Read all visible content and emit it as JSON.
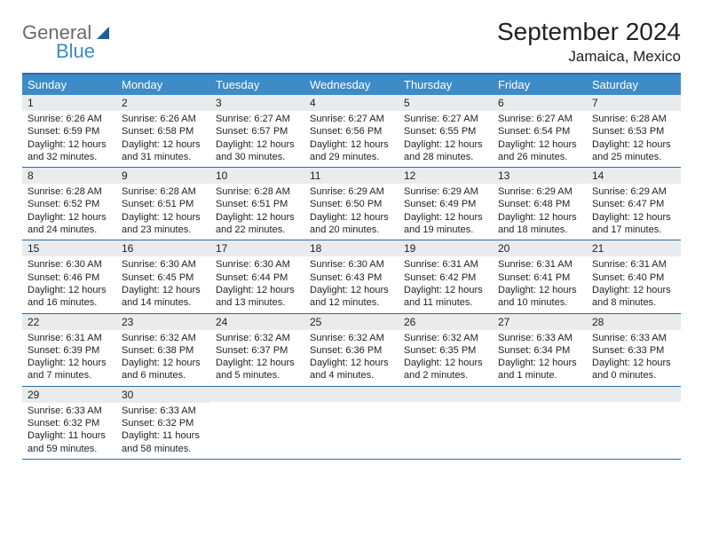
{
  "logo": {
    "general": "General",
    "blue": "Blue"
  },
  "title": "September 2024",
  "location": "Jamaica, Mexico",
  "colors": {
    "header_bg": "#3d8bc7",
    "header_text": "#ffffff",
    "border": "#2a6ca8",
    "daynum_bg": "#e9ebec",
    "text": "#222222",
    "logo_gray": "#6b6b6b",
    "logo_blue": "#3b8bc4",
    "logo_mark": "#1d5f9e"
  },
  "weekdays": [
    "Sunday",
    "Monday",
    "Tuesday",
    "Wednesday",
    "Thursday",
    "Friday",
    "Saturday"
  ],
  "days": [
    {
      "n": "1",
      "sunrise": "Sunrise: 6:26 AM",
      "sunset": "Sunset: 6:59 PM",
      "day1": "Daylight: 12 hours",
      "day2": "and 32 minutes."
    },
    {
      "n": "2",
      "sunrise": "Sunrise: 6:26 AM",
      "sunset": "Sunset: 6:58 PM",
      "day1": "Daylight: 12 hours",
      "day2": "and 31 minutes."
    },
    {
      "n": "3",
      "sunrise": "Sunrise: 6:27 AM",
      "sunset": "Sunset: 6:57 PM",
      "day1": "Daylight: 12 hours",
      "day2": "and 30 minutes."
    },
    {
      "n": "4",
      "sunrise": "Sunrise: 6:27 AM",
      "sunset": "Sunset: 6:56 PM",
      "day1": "Daylight: 12 hours",
      "day2": "and 29 minutes."
    },
    {
      "n": "5",
      "sunrise": "Sunrise: 6:27 AM",
      "sunset": "Sunset: 6:55 PM",
      "day1": "Daylight: 12 hours",
      "day2": "and 28 minutes."
    },
    {
      "n": "6",
      "sunrise": "Sunrise: 6:27 AM",
      "sunset": "Sunset: 6:54 PM",
      "day1": "Daylight: 12 hours",
      "day2": "and 26 minutes."
    },
    {
      "n": "7",
      "sunrise": "Sunrise: 6:28 AM",
      "sunset": "Sunset: 6:53 PM",
      "day1": "Daylight: 12 hours",
      "day2": "and 25 minutes."
    },
    {
      "n": "8",
      "sunrise": "Sunrise: 6:28 AM",
      "sunset": "Sunset: 6:52 PM",
      "day1": "Daylight: 12 hours",
      "day2": "and 24 minutes."
    },
    {
      "n": "9",
      "sunrise": "Sunrise: 6:28 AM",
      "sunset": "Sunset: 6:51 PM",
      "day1": "Daylight: 12 hours",
      "day2": "and 23 minutes."
    },
    {
      "n": "10",
      "sunrise": "Sunrise: 6:28 AM",
      "sunset": "Sunset: 6:51 PM",
      "day1": "Daylight: 12 hours",
      "day2": "and 22 minutes."
    },
    {
      "n": "11",
      "sunrise": "Sunrise: 6:29 AM",
      "sunset": "Sunset: 6:50 PM",
      "day1": "Daylight: 12 hours",
      "day2": "and 20 minutes."
    },
    {
      "n": "12",
      "sunrise": "Sunrise: 6:29 AM",
      "sunset": "Sunset: 6:49 PM",
      "day1": "Daylight: 12 hours",
      "day2": "and 19 minutes."
    },
    {
      "n": "13",
      "sunrise": "Sunrise: 6:29 AM",
      "sunset": "Sunset: 6:48 PM",
      "day1": "Daylight: 12 hours",
      "day2": "and 18 minutes."
    },
    {
      "n": "14",
      "sunrise": "Sunrise: 6:29 AM",
      "sunset": "Sunset: 6:47 PM",
      "day1": "Daylight: 12 hours",
      "day2": "and 17 minutes."
    },
    {
      "n": "15",
      "sunrise": "Sunrise: 6:30 AM",
      "sunset": "Sunset: 6:46 PM",
      "day1": "Daylight: 12 hours",
      "day2": "and 16 minutes."
    },
    {
      "n": "16",
      "sunrise": "Sunrise: 6:30 AM",
      "sunset": "Sunset: 6:45 PM",
      "day1": "Daylight: 12 hours",
      "day2": "and 14 minutes."
    },
    {
      "n": "17",
      "sunrise": "Sunrise: 6:30 AM",
      "sunset": "Sunset: 6:44 PM",
      "day1": "Daylight: 12 hours",
      "day2": "and 13 minutes."
    },
    {
      "n": "18",
      "sunrise": "Sunrise: 6:30 AM",
      "sunset": "Sunset: 6:43 PM",
      "day1": "Daylight: 12 hours",
      "day2": "and 12 minutes."
    },
    {
      "n": "19",
      "sunrise": "Sunrise: 6:31 AM",
      "sunset": "Sunset: 6:42 PM",
      "day1": "Daylight: 12 hours",
      "day2": "and 11 minutes."
    },
    {
      "n": "20",
      "sunrise": "Sunrise: 6:31 AM",
      "sunset": "Sunset: 6:41 PM",
      "day1": "Daylight: 12 hours",
      "day2": "and 10 minutes."
    },
    {
      "n": "21",
      "sunrise": "Sunrise: 6:31 AM",
      "sunset": "Sunset: 6:40 PM",
      "day1": "Daylight: 12 hours",
      "day2": "and 8 minutes."
    },
    {
      "n": "22",
      "sunrise": "Sunrise: 6:31 AM",
      "sunset": "Sunset: 6:39 PM",
      "day1": "Daylight: 12 hours",
      "day2": "and 7 minutes."
    },
    {
      "n": "23",
      "sunrise": "Sunrise: 6:32 AM",
      "sunset": "Sunset: 6:38 PM",
      "day1": "Daylight: 12 hours",
      "day2": "and 6 minutes."
    },
    {
      "n": "24",
      "sunrise": "Sunrise: 6:32 AM",
      "sunset": "Sunset: 6:37 PM",
      "day1": "Daylight: 12 hours",
      "day2": "and 5 minutes."
    },
    {
      "n": "25",
      "sunrise": "Sunrise: 6:32 AM",
      "sunset": "Sunset: 6:36 PM",
      "day1": "Daylight: 12 hours",
      "day2": "and 4 minutes."
    },
    {
      "n": "26",
      "sunrise": "Sunrise: 6:32 AM",
      "sunset": "Sunset: 6:35 PM",
      "day1": "Daylight: 12 hours",
      "day2": "and 2 minutes."
    },
    {
      "n": "27",
      "sunrise": "Sunrise: 6:33 AM",
      "sunset": "Sunset: 6:34 PM",
      "day1": "Daylight: 12 hours",
      "day2": "and 1 minute."
    },
    {
      "n": "28",
      "sunrise": "Sunrise: 6:33 AM",
      "sunset": "Sunset: 6:33 PM",
      "day1": "Daylight: 12 hours",
      "day2": "and 0 minutes."
    },
    {
      "n": "29",
      "sunrise": "Sunrise: 6:33 AM",
      "sunset": "Sunset: 6:32 PM",
      "day1": "Daylight: 11 hours",
      "day2": "and 59 minutes."
    },
    {
      "n": "30",
      "sunrise": "Sunrise: 6:33 AM",
      "sunset": "Sunset: 6:32 PM",
      "day1": "Daylight: 11 hours",
      "day2": "and 58 minutes."
    }
  ],
  "trailing_empty": 5
}
